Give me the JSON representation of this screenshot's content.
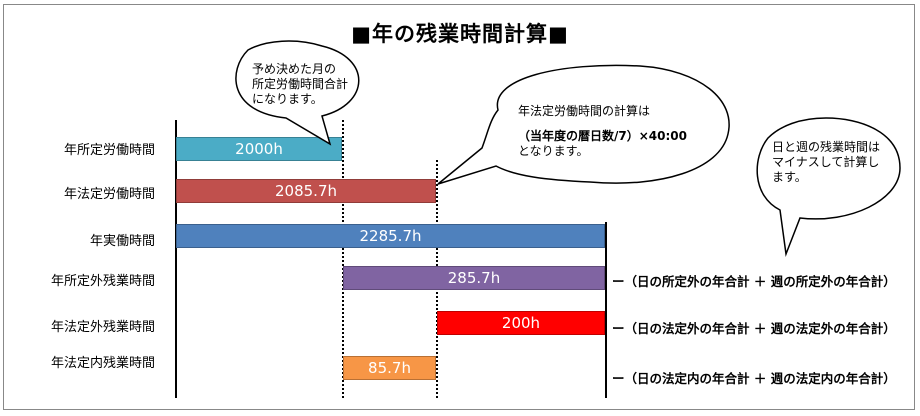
{
  "title": "■年の残業時間計算■",
  "rows": [
    {
      "label": "年所定労働時間",
      "bar_label": "2000h",
      "hours": 2000,
      "color": "#4bacc6"
    },
    {
      "label": "年法定労働時間",
      "bar_label": "2085.7h",
      "hours": 2085.7,
      "color": "#c0504d"
    },
    {
      "label": "年実働時間",
      "bar_label": "2285.7h",
      "hours": 2285.7,
      "color": "#4f81bd"
    },
    {
      "label": "年所定外残業時間",
      "bar_label": "285.7h",
      "hours": 285.7,
      "color": "#8064a2"
    },
    {
      "label": "年法定外残業時間",
      "bar_label": "200h",
      "hours": 200,
      "color": "#ff0000"
    },
    {
      "label": "年法定内残業時間",
      "bar_label": "85.7h",
      "hours": 85.7,
      "color": "#f79646"
    }
  ],
  "formulas": [
    "ー（日の所定外の年合計 ＋ 週の所定外の年合計）",
    "ー（日の法定外の年合計 ＋ 週の法定外の年合計）",
    "ー（日の法定内の年合計 ＋ 週の法定内の年合計）"
  ],
  "callouts": {
    "prescribed": {
      "line1": "予め決めた月の",
      "line2": "所定労働時間合計",
      "line3": "になります。"
    },
    "statutory": {
      "line1": "年法定労働時間の計算は",
      "line2": "（当年度の暦日数/7）×40:00",
      "line3": "となります。"
    },
    "negative": {
      "line1": "日と週の残業時間は",
      "line2": "マイナスして計算し",
      "line3": "ます。"
    }
  }
}
